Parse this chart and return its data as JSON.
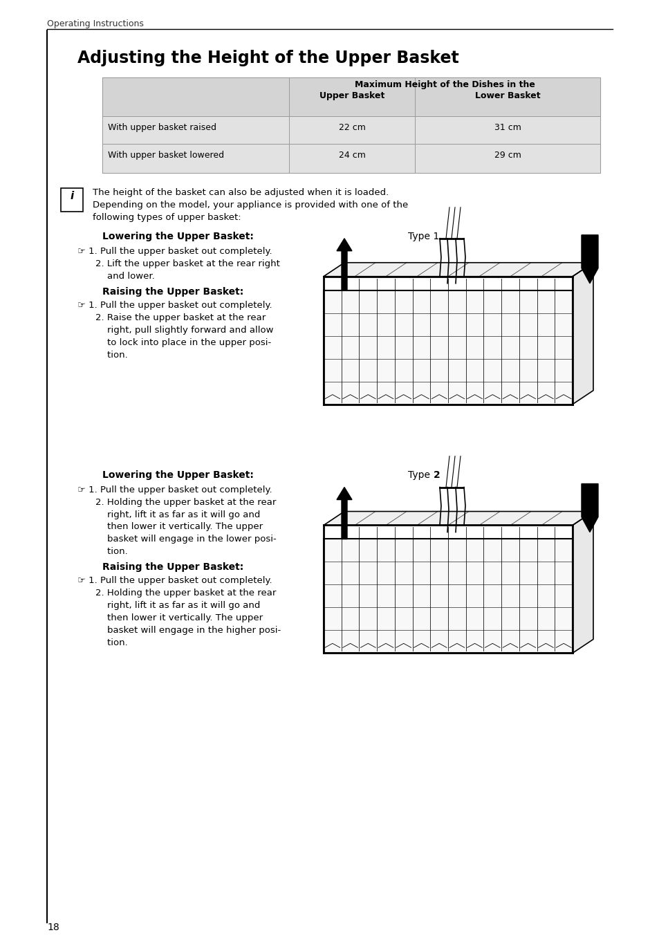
{
  "page_header": "Operating Instructions",
  "title": "Adjusting the Height of the Upper Basket",
  "table_header_span": "Maximum Height of the Dishes in the",
  "table_header_col1": "Upper Basket",
  "table_header_col2": "Lower Basket",
  "table_row1_col0": "With upper basket raised",
  "table_row1_col1": "22 cm",
  "table_row1_col2": "31 cm",
  "table_row2_col0": "With upper basket lowered",
  "table_row2_col1": "24 cm",
  "table_row2_col2": "29 cm",
  "info_text1": "The height of the basket can also be adjusted when it is loaded.",
  "info_text2": "Depending on the model, your appliance is provided with one of the",
  "info_text3": "following types of upper basket:",
  "type1_lower_heading": "Lowering the Upper Basket:",
  "type1_label": "Type 1",
  "type1_lower_step1a": "☞ 1. Pull the upper basket out completely.",
  "type1_lower_step2a": "2. Lift the upper basket at the rear right",
  "type1_lower_step2b": "    and lower.",
  "type1_raise_heading": "Raising the Upper Basket:",
  "type1_raise_step1a": "☞ 1. Pull the upper basket out completely.",
  "type1_raise_step2a": "2. Raise the upper basket at the rear",
  "type1_raise_step2b": "    right, pull slightly forward and allow",
  "type1_raise_step2c": "    to lock into place in the upper posi-",
  "type1_raise_step2d": "    tion.",
  "type2_lower_heading": "Lowering the Upper Basket:",
  "type2_label": "Type 2",
  "type2_lower_step1a": "☞ 1. Pull the upper basket out completely.",
  "type2_lower_step2a": "2. Holding the upper basket at the rear",
  "type2_lower_step2b": "    right, lift it as far as it will go and",
  "type2_lower_step2c": "    then lower it vertically. The upper",
  "type2_lower_step2d": "    basket will engage in the lower posi-",
  "type2_lower_step2e": "    tion.",
  "type2_raise_heading": "Raising the Upper Basket:",
  "type2_raise_step1a": "☞ 1. Pull the upper basket out completely.",
  "type2_raise_step2a": "2. Holding the upper basket at the rear",
  "type2_raise_step2b": "    right, lift it as far as it will go and",
  "type2_raise_step2c": "    then lower it vertically. The upper",
  "type2_raise_step2d": "    basket will engage in the higher posi-",
  "type2_raise_step2e": "    tion.",
  "page_number": "18",
  "bg_color": "#ffffff",
  "text_color": "#000000",
  "table_bg": "#d4d4d4",
  "row_bg": "#e2e2e2",
  "border_color": "#999999"
}
